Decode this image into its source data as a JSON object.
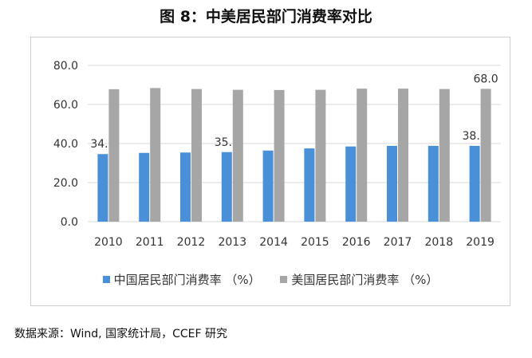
{
  "title": "图 8：中美居民部门消费率对比",
  "source": "数据来源：Wind, 国家统计局，CCEF 研究",
  "chart_data": {
    "type": "bar",
    "title": "图 8：中美居民部门消费率对比",
    "xlabel": "",
    "ylabel": "",
    "ylim": [
      0,
      80
    ],
    "yticks": [
      "0.0",
      "20.0",
      "40.0",
      "60.0",
      "80.0"
    ],
    "grid": true,
    "legend_position": "bottom",
    "categories": [
      "2010",
      "2011",
      "2012",
      "2013",
      "2014",
      "2015",
      "2016",
      "2017",
      "2018",
      "2019"
    ],
    "series": [
      {
        "name": "中国居民部门消费率 （%）",
        "color": "#4a90d9",
        "values": [
          34.6,
          35.2,
          35.4,
          35.6,
          36.4,
          37.5,
          38.5,
          38.8,
          38.8,
          38.8
        ],
        "data_labels": {
          "0": "34.6",
          "3": "35.6",
          "9": "38.8"
        }
      },
      {
        "name": "美国居民部门消费率 （%）",
        "color": "#a6a6a6",
        "values": [
          67.8,
          68.4,
          67.9,
          67.5,
          67.4,
          67.5,
          68.1,
          68.1,
          67.9,
          68.0
        ],
        "data_labels": {
          "9": "68.0"
        }
      }
    ]
  }
}
